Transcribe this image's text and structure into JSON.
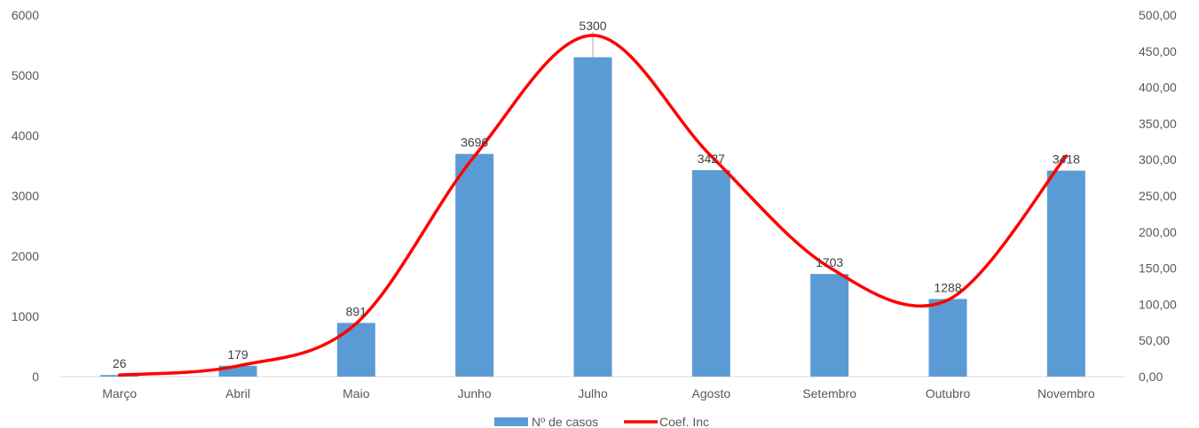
{
  "chart_data": {
    "type": "bar",
    "categories": [
      "Março",
      "Abril",
      "Maio",
      "Junho",
      "Julho",
      "Agosto",
      "Setembro",
      "Outubro",
      "Novembro"
    ],
    "series": [
      {
        "name": "Nº de casos",
        "type": "bar",
        "axis": "left",
        "color": "#5B9BD5",
        "values": [
          26,
          179,
          891,
          3696,
          5300,
          3427,
          1703,
          1288,
          3418
        ],
        "data_labels": [
          "26",
          "179",
          "891",
          "3696",
          "5300",
          "3427",
          "1703",
          "1288",
          "3418"
        ]
      },
      {
        "name": "Coef. Inc",
        "type": "line",
        "axis": "right",
        "smooth": true,
        "color": "#FF0000",
        "values": [
          2.2,
          14.8,
          73.5,
          304.9,
          472.0,
          305.0,
          151.0,
          106.0,
          305.0
        ]
      }
    ],
    "y_left": {
      "min": 0,
      "max": 6000,
      "ticks": [
        0,
        1000,
        2000,
        3000,
        4000,
        5000,
        6000
      ],
      "tick_labels": [
        "0",
        "1000",
        "2000",
        "3000",
        "4000",
        "5000",
        "6000"
      ]
    },
    "y_right": {
      "min": 0,
      "max": 500,
      "ticks": [
        0,
        50,
        100,
        150,
        200,
        250,
        300,
        350,
        400,
        450,
        500
      ],
      "tick_labels": [
        "0,00",
        "50,00",
        "100,00",
        "150,00",
        "200,00",
        "250,00",
        "300,00",
        "350,00",
        "400,00",
        "450,00",
        "500,00"
      ]
    },
    "grid": false,
    "legend": {
      "position": "bottom",
      "entries": [
        "Nº de casos",
        "Coef. Inc"
      ]
    },
    "title": "",
    "xlabel": "",
    "ylabel": ""
  }
}
